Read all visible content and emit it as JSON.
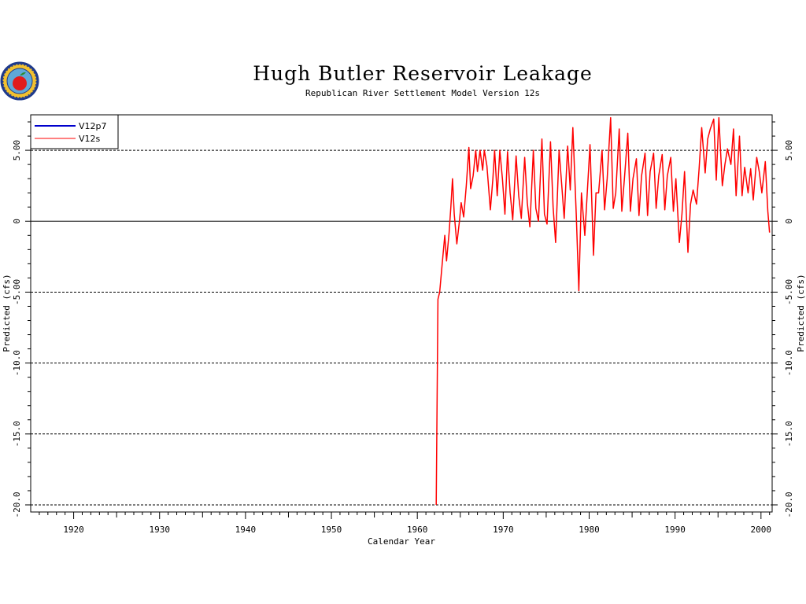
{
  "chart_data": {
    "type": "line",
    "title": "Hugh Butler Reservoir Leakage",
    "subtitle": "Republican River Settlement Model Version 12s",
    "xlabel": "Calendar Year",
    "ylabel": "Predicted (cfs)",
    "xlim": [
      1915,
      2001.3
    ],
    "ylim": [
      -20.5,
      7.5
    ],
    "x_ticks": [
      1920,
      1930,
      1940,
      1950,
      1960,
      1970,
      1980,
      1990,
      2000
    ],
    "x_tick_labels": [
      "1920",
      "1930",
      "1940",
      "1950",
      "1960",
      "1970",
      "1980",
      "1990",
      "2000"
    ],
    "y_ticks": [
      5,
      0,
      -5,
      -10,
      -15,
      -20
    ],
    "y_tick_labels": [
      "5.00",
      "0",
      "-5.00",
      "-10.0",
      "-15.0",
      "-20.0"
    ],
    "gridlines": "dashed horizontal at y tick values; solid at 0",
    "legend_position": "top-left",
    "series": [
      {
        "name": "V12p7",
        "color": "#0000cc",
        "x": [],
        "y": []
      },
      {
        "name": "V12s",
        "color": "#ff0000",
        "x": [
          1962.2,
          1962.4,
          1962.6,
          1962.9,
          1963.2,
          1963.4,
          1963.7,
          1963.9,
          1964.1,
          1964.3,
          1964.6,
          1964.9,
          1965.1,
          1965.4,
          1965.7,
          1966.0,
          1966.2,
          1966.5,
          1966.8,
          1967.0,
          1967.3,
          1967.6,
          1967.8,
          1968.1,
          1968.5,
          1968.8,
          1969.0,
          1969.3,
          1969.6,
          1969.9,
          1970.2,
          1970.5,
          1970.8,
          1971.1,
          1971.5,
          1971.8,
          1972.1,
          1972.5,
          1972.8,
          1973.1,
          1973.5,
          1973.8,
          1974.1,
          1974.5,
          1974.8,
          1975.1,
          1975.5,
          1975.8,
          1976.1,
          1976.5,
          1976.8,
          1977.1,
          1977.5,
          1977.8,
          1978.1,
          1978.5,
          1978.8,
          1979.1,
          1979.5,
          1979.8,
          1980.1,
          1980.5,
          1980.8,
          1981.1,
          1981.5,
          1981.8,
          1982.1,
          1982.5,
          1982.8,
          1983.1,
          1983.5,
          1983.8,
          1984.1,
          1984.5,
          1984.8,
          1985.1,
          1985.5,
          1985.8,
          1986.1,
          1986.5,
          1986.8,
          1987.1,
          1987.5,
          1987.8,
          1988.1,
          1988.5,
          1988.8,
          1989.1,
          1989.5,
          1989.8,
          1990.1,
          1990.5,
          1990.8,
          1991.1,
          1991.5,
          1991.8,
          1992.1,
          1992.5,
          1992.8,
          1993.1,
          1993.5,
          1993.8,
          1994.1,
          1994.5,
          1994.8,
          1995.1,
          1995.5,
          1995.8,
          1996.1,
          1996.5,
          1996.8,
          1997.1,
          1997.5,
          1997.8,
          1998.1,
          1998.5,
          1998.8,
          1999.1,
          1999.5,
          1999.8,
          2000.1,
          2000.5,
          2000.8,
          2001.0
        ],
        "y": [
          -20.0,
          -5.5,
          -5.0,
          -3.0,
          -1.0,
          -2.8,
          -0.8,
          1.0,
          3.0,
          0.5,
          -1.6,
          0.0,
          1.3,
          0.3,
          2.5,
          5.2,
          2.3,
          3.2,
          5.0,
          3.5,
          5.0,
          3.6,
          5.0,
          3.9,
          0.8,
          3.0,
          5.0,
          1.8,
          5.0,
          3.0,
          0.5,
          4.9,
          2.0,
          0.1,
          4.6,
          1.8,
          0.2,
          4.5,
          1.3,
          -0.4,
          5.0,
          0.9,
          0.0,
          5.8,
          0.5,
          -0.2,
          5.6,
          1.0,
          -1.5,
          5.0,
          2.6,
          0.2,
          5.3,
          2.2,
          6.6,
          0.5,
          -4.9,
          2.0,
          -1.0,
          2.2,
          5.4,
          -2.4,
          2.0,
          2.0,
          5.0,
          0.8,
          3.0,
          7.3,
          0.9,
          2.0,
          6.5,
          0.7,
          3.0,
          6.2,
          0.7,
          3.0,
          4.4,
          0.4,
          3.2,
          4.8,
          0.4,
          3.5,
          4.8,
          0.9,
          3.2,
          4.7,
          0.8,
          3.2,
          4.5,
          0.7,
          3.0,
          -1.5,
          0.5,
          3.5,
          -2.2,
          1.2,
          2.2,
          1.2,
          3.7,
          6.6,
          3.4,
          5.8,
          6.5,
          7.2,
          2.9,
          7.3,
          2.5,
          4.0,
          5.1,
          4.0,
          6.5,
          1.8,
          6.0,
          1.8,
          3.8,
          2.0,
          3.7,
          1.5,
          4.5,
          3.5,
          2.0,
          4.2,
          0.7,
          -0.8
        ]
      }
    ]
  },
  "logo": {
    "name": "seal-logo"
  }
}
